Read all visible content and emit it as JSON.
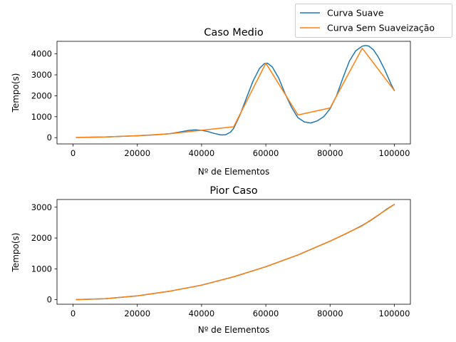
{
  "legend": {
    "placement": "top-right",
    "entries": [
      {
        "name": "Curva Suave",
        "color": "#1f77b4"
      },
      {
        "name": "Curva Sem Suaveização",
        "color": "#ff7f0e"
      }
    ]
  },
  "chart_data": [
    {
      "type": "line",
      "title": "Caso Medio",
      "xlabel": "Nº de Elementos",
      "ylabel": "Tempo(s)",
      "xlim": [
        -5000,
        105000
      ],
      "ylim": [
        -300,
        4600
      ],
      "xticks": [
        0,
        20000,
        40000,
        60000,
        80000,
        100000
      ],
      "yticks": [
        0,
        1000,
        2000,
        3000,
        4000
      ],
      "grid": false,
      "series": [
        {
          "name": "Curva Suave",
          "color": "#1f77b4",
          "x": [
            1000,
            5000,
            10000,
            15000,
            20000,
            25000,
            30000,
            33000,
            36000,
            38000,
            40000,
            42000,
            44000,
            46000,
            47500,
            49000,
            50000,
            52000,
            54000,
            56000,
            58000,
            59500,
            60500,
            62000,
            64000,
            66000,
            68000,
            70000,
            72000,
            74000,
            76000,
            78000,
            80000,
            82000,
            84000,
            86000,
            88000,
            90000,
            91000,
            92000,
            93500,
            95000,
            97000,
            99000,
            100000
          ],
          "y": [
            10,
            18,
            35,
            60,
            90,
            130,
            185,
            260,
            345,
            370,
            350,
            290,
            200,
            130,
            140,
            260,
            450,
            1100,
            1900,
            2700,
            3300,
            3530,
            3560,
            3380,
            2850,
            2100,
            1450,
            950,
            750,
            700,
            800,
            1000,
            1380,
            2000,
            2850,
            3650,
            4150,
            4370,
            4400,
            4380,
            4200,
            3850,
            3250,
            2550,
            2250
          ]
        },
        {
          "name": "Curva Sem Suaveização",
          "color": "#ff7f0e",
          "x": [
            1000,
            10000,
            20000,
            30000,
            40000,
            50000,
            60000,
            70000,
            80000,
            90000,
            100000
          ],
          "y": [
            10,
            35,
            90,
            185,
            350,
            520,
            3560,
            1080,
            1420,
            4270,
            2250
          ]
        }
      ]
    },
    {
      "type": "line",
      "title": "Pior Caso",
      "xlabel": "Nº de Elementos",
      "ylabel": "Tempo(s)",
      "xlim": [
        -5000,
        105000
      ],
      "ylim": [
        -150,
        3250
      ],
      "xticks": [
        0,
        20000,
        40000,
        60000,
        80000,
        100000
      ],
      "yticks": [
        0,
        1000,
        2000,
        3000
      ],
      "grid": false,
      "series": [
        {
          "name": "Curva Suave",
          "color": "#1f77b4",
          "x": [
            1000,
            10000,
            20000,
            30000,
            40000,
            50000,
            60000,
            70000,
            80000,
            85000,
            90000,
            92500,
            95000,
            97500,
            100000
          ],
          "y": [
            0,
            30,
            120,
            270,
            470,
            740,
            1070,
            1450,
            1900,
            2140,
            2410,
            2560,
            2740,
            2930,
            3090
          ]
        },
        {
          "name": "Curva Sem Suaveização",
          "color": "#ff7f0e",
          "x": [
            1000,
            10000,
            20000,
            30000,
            40000,
            50000,
            60000,
            70000,
            80000,
            90000,
            100000
          ],
          "y": [
            0,
            30,
            120,
            270,
            470,
            740,
            1070,
            1450,
            1900,
            2400,
            3090
          ]
        }
      ]
    }
  ]
}
